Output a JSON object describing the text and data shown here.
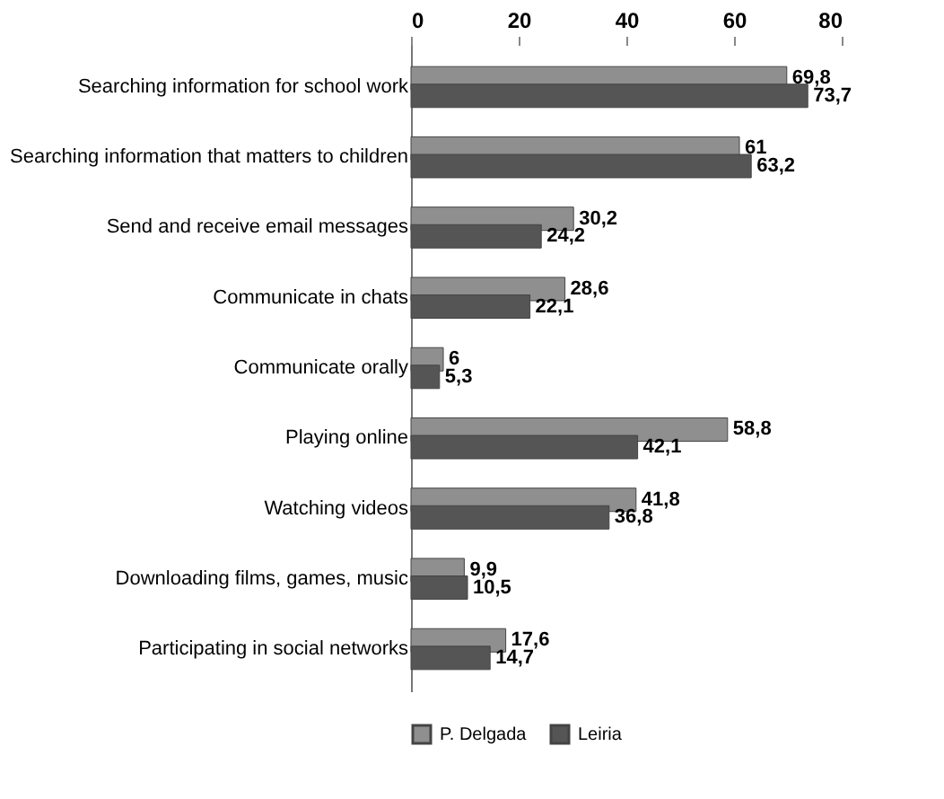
{
  "chart_data": {
    "type": "bar",
    "orientation": "horizontal",
    "categories": [
      "Searching information for school work",
      "Searching information that matters to children",
      "Send and receive email messages",
      "Communicate in chats",
      "Communicate orally",
      "Playing online",
      "Watching videos",
      "Downloading films, games, music",
      "Participating in social networks"
    ],
    "series": [
      {
        "name": "P. Delgada",
        "color": "#8f8f8f",
        "values": [
          69.8,
          61,
          30.2,
          28.6,
          6,
          58.8,
          41.8,
          9.9,
          17.6
        ],
        "value_labels": [
          "69,8",
          "61",
          "30,2",
          "28,6",
          "6",
          "58,8",
          "41,8",
          "9,9",
          "17,6"
        ]
      },
      {
        "name": "Leiria",
        "color": "#555555",
        "values": [
          73.7,
          63.2,
          24.2,
          22.1,
          5.3,
          42.1,
          36.8,
          10.5,
          14.7
        ],
        "value_labels": [
          "73,7",
          "63,2",
          "24,2",
          "22,1",
          "5,3",
          "42,1",
          "36,8",
          "10,5",
          "14,7"
        ]
      }
    ],
    "xlim": [
      0,
      80
    ],
    "xticks": [
      0,
      20,
      40,
      60,
      80
    ],
    "grid": false,
    "legend": "bottom"
  }
}
